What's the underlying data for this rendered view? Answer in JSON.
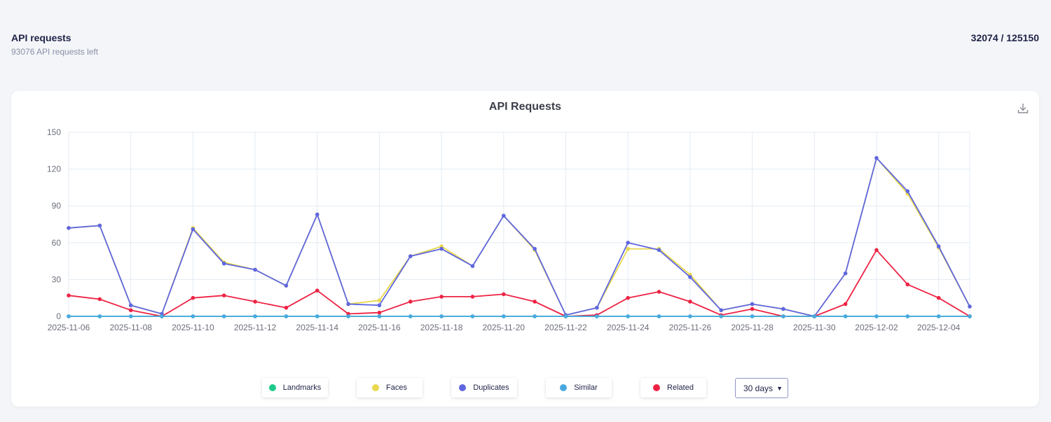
{
  "header": {
    "title": "API requests",
    "subtitle": "93076 API requests left",
    "usage": "32074 / 125150"
  },
  "card": {
    "download_icon": "download-icon"
  },
  "legend": [
    {
      "label": "Landmarks",
      "color": "#1ec98a"
    },
    {
      "label": "Faces",
      "color": "#e8d84e"
    },
    {
      "label": "Duplicates",
      "color": "#5f67e0"
    },
    {
      "label": "Similar",
      "color": "#4aa8e0"
    },
    {
      "label": "Related",
      "color": "#ee2344"
    }
  ],
  "range_select": {
    "value": "30 days"
  },
  "chart_data": {
    "type": "line",
    "title": "API Requests",
    "xlabel": "",
    "ylabel": "",
    "ylim": [
      0,
      150
    ],
    "yticks": [
      0,
      30,
      60,
      90,
      120,
      150
    ],
    "x": [
      "2025-11-06",
      "2025-11-07",
      "2025-11-08",
      "2025-11-09",
      "2025-11-10",
      "2025-11-11",
      "2025-11-12",
      "2025-11-13",
      "2025-11-14",
      "2025-11-15",
      "2025-11-16",
      "2025-11-17",
      "2025-11-18",
      "2025-11-19",
      "2025-11-20",
      "2025-11-21",
      "2025-11-22",
      "2025-11-23",
      "2025-11-24",
      "2025-11-25",
      "2025-11-26",
      "2025-11-27",
      "2025-11-28",
      "2025-11-29",
      "2025-11-30",
      "2025-12-01",
      "2025-12-02",
      "2025-12-03",
      "2025-12-04",
      "2025-12-05"
    ],
    "xtick_labels": [
      "2025-11-06",
      "2025-11-08",
      "2025-11-10",
      "2025-11-12",
      "2025-11-14",
      "2025-11-16",
      "2025-11-18",
      "2025-11-20",
      "2025-11-22",
      "2025-11-24",
      "2025-11-26",
      "2025-11-28",
      "2025-11-30",
      "2025-12-02",
      "2025-12-04"
    ],
    "grid": true,
    "legend_position": "bottom",
    "series": [
      {
        "name": "Landmarks",
        "color": "#1ec98a",
        "values": [
          0,
          0,
          0,
          0,
          0,
          0,
          0,
          0,
          0,
          0,
          0,
          0,
          0,
          0,
          0,
          0,
          0,
          0,
          0,
          0,
          0,
          0,
          0,
          0,
          0,
          0,
          0,
          0,
          0,
          0
        ]
      },
      {
        "name": "Faces",
        "color": "#e8d84e",
        "values": [
          72,
          74,
          9,
          2,
          72,
          44,
          38,
          25,
          83,
          10,
          13,
          49,
          57,
          41,
          82,
          54,
          1,
          7,
          55,
          55,
          34,
          5,
          10,
          6,
          0,
          35,
          129,
          100,
          56,
          8
        ]
      },
      {
        "name": "Duplicates",
        "color": "#5f67e0",
        "values": [
          72,
          74,
          9,
          2,
          71,
          43,
          38,
          25,
          83,
          10,
          9,
          49,
          55,
          41,
          82,
          55,
          1,
          7,
          60,
          54,
          32,
          5,
          10,
          6,
          0,
          35,
          129,
          102,
          57,
          8
        ]
      },
      {
        "name": "Similar",
        "color": "#4aa8e0",
        "values": [
          0,
          0,
          0,
          0,
          0,
          0,
          0,
          0,
          0,
          0,
          0,
          0,
          0,
          0,
          0,
          0,
          0,
          0,
          0,
          0,
          0,
          0,
          0,
          0,
          0,
          0,
          0,
          0,
          0,
          0
        ]
      },
      {
        "name": "Related",
        "color": "#ee2344",
        "values": [
          17,
          14,
          5,
          0,
          15,
          17,
          12,
          7,
          21,
          2,
          3,
          12,
          16,
          16,
          18,
          12,
          0,
          1,
          15,
          20,
          12,
          1,
          6,
          0,
          0,
          10,
          54,
          26,
          15,
          0
        ]
      }
    ]
  }
}
